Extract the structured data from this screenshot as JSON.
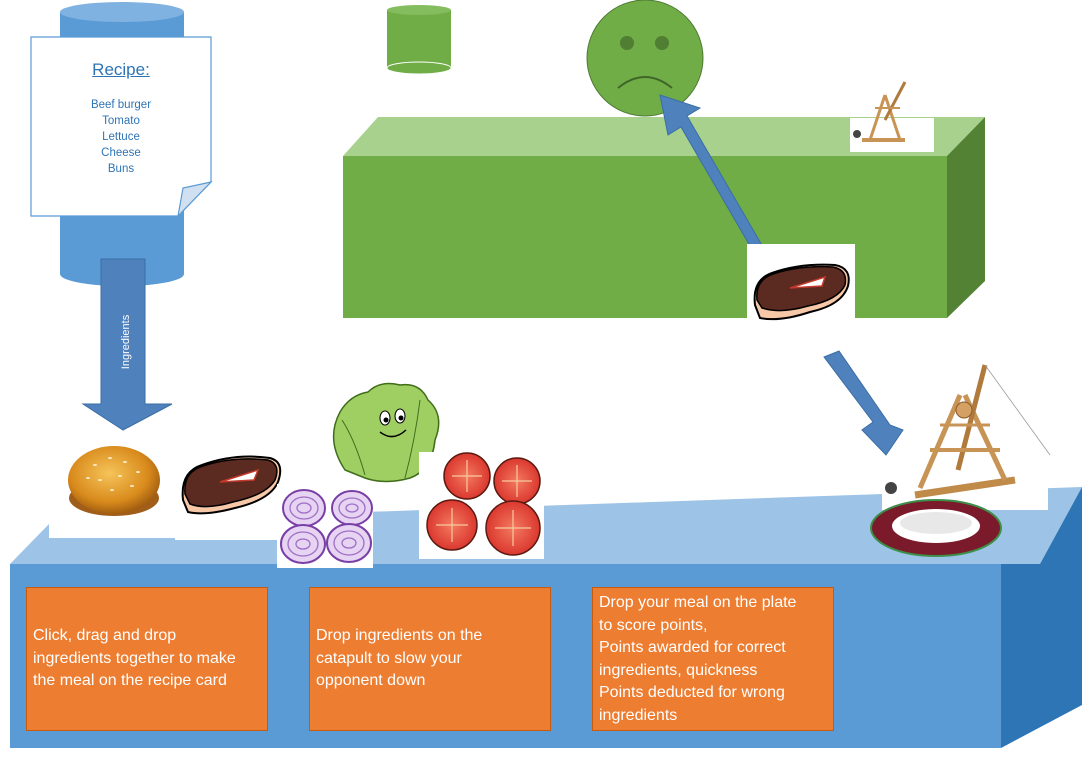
{
  "recipe": {
    "title": "Recipe:",
    "items": [
      "Beef burger",
      "Tomato",
      "Lettuce",
      "Cheese",
      "Buns"
    ]
  },
  "ingredients_label": "Ingredients",
  "instructions": [
    "Click, drag and drop\ningredients together to make\nthe meal on the recipe card",
    "Drop ingredients on the\ncatapult to slow your\nopponent down",
    "Drop your meal on the plate\nto score points,\nPoints awarded for correct\ningredients, quickness\nPoints deducted for wrong\ningredients"
  ],
  "colors": {
    "counter_front": "#5b9bd5",
    "counter_top": "#9dc3e6",
    "counter_side": "#2e75b6",
    "opponent_front": "#70ad47",
    "opponent_top": "#a9d18e",
    "opponent_side": "#548235",
    "info_box": "#ed7d31",
    "arrow": "#4f81bd",
    "face": "#70ad47"
  },
  "icons": [
    "recipe-card-icon",
    "sad-face-icon",
    "catapult-icon",
    "steak-icon",
    "burger-bun-icon",
    "onion-icon",
    "tomato-icon",
    "lettuce-icon",
    "plate-icon"
  ]
}
